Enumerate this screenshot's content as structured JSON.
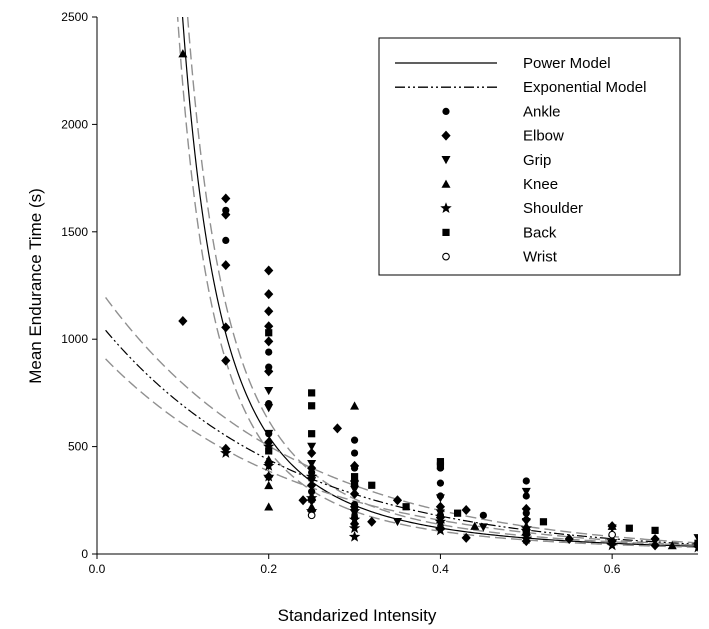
{
  "chart_data": {
    "type": "scatter",
    "title": "",
    "xlabel": "Standarized Intensity",
    "ylabel": "Mean Endurance Time (s)",
    "xlim": [
      0.0,
      0.7
    ],
    "ylim": [
      0,
      2500
    ],
    "xticks": [
      "0.0",
      "0.2",
      "0.4",
      "0.6"
    ],
    "xtick_values": [
      0.0,
      0.2,
      0.4,
      0.6
    ],
    "yticks": [
      "0",
      "500",
      "1000",
      "1500",
      "2000",
      "2500"
    ],
    "ytick_values": [
      0,
      500,
      1000,
      1500,
      2000,
      2500
    ],
    "grid": false,
    "legend_position": "top-right",
    "legend": [
      {
        "label": "Power Model",
        "kind": "solid-line"
      },
      {
        "label": "Exponential Model",
        "kind": "dash-dot-line"
      },
      {
        "label": "Ankle",
        "kind": "circle"
      },
      {
        "label": "Elbow",
        "kind": "diamond"
      },
      {
        "label": "Grip",
        "kind": "triangle-down"
      },
      {
        "label": "Knee",
        "kind": "triangle-up"
      },
      {
        "label": "Shoulder",
        "kind": "star"
      },
      {
        "label": "Back",
        "kind": "square"
      },
      {
        "label": "Wrist",
        "kind": "open-circle"
      }
    ],
    "models": [
      {
        "name": "Power Model",
        "form": "y = a * x^-b",
        "a": 16.4,
        "b": 2.18,
        "style": "solid",
        "color": "#000000"
      },
      {
        "name": "Power Model confidence band upper",
        "form": "y = a * x^-b",
        "a": 18.6,
        "b": 2.18,
        "style": "dashed",
        "color": "#909090"
      },
      {
        "name": "Power Model confidence band lower",
        "form": "y = a * x^-b",
        "a": 14.4,
        "b": 2.18,
        "style": "dashed",
        "color": "#909090"
      },
      {
        "name": "Exponential Model",
        "form": "y = a * exp(-b * x)",
        "a": 1090,
        "b": 4.55,
        "style": "dash-dot",
        "color": "#000000"
      },
      {
        "name": "Exponential Model confidence band upper",
        "form": "y = a * exp(-b * x)",
        "a": 1250,
        "b": 4.55,
        "style": "dashed",
        "color": "#909090"
      },
      {
        "name": "Exponential Model confidence band lower",
        "form": "y = a * exp(-b * x)",
        "a": 950,
        "b": 4.5,
        "style": "dashed",
        "color": "#909090"
      }
    ],
    "series": [
      {
        "name": "Ankle",
        "marker": "circle",
        "points": [
          [
            0.15,
            1600
          ],
          [
            0.15,
            1460
          ],
          [
            0.2,
            940
          ],
          [
            0.2,
            870
          ],
          [
            0.2,
            700
          ],
          [
            0.2,
            560
          ],
          [
            0.25,
            380
          ],
          [
            0.25,
            290
          ],
          [
            0.3,
            530
          ],
          [
            0.3,
            470
          ],
          [
            0.3,
            400
          ],
          [
            0.3,
            320
          ],
          [
            0.3,
            230
          ],
          [
            0.3,
            170
          ],
          [
            0.4,
            400
          ],
          [
            0.4,
            330
          ],
          [
            0.4,
            270
          ],
          [
            0.4,
            180
          ],
          [
            0.45,
            180
          ],
          [
            0.5,
            340
          ],
          [
            0.5,
            270
          ],
          [
            0.5,
            190
          ],
          [
            0.5,
            110
          ],
          [
            0.6,
            90
          ],
          [
            0.7,
            40
          ]
        ]
      },
      {
        "name": "Elbow",
        "marker": "diamond",
        "points": [
          [
            0.1,
            1085
          ],
          [
            0.15,
            1655
          ],
          [
            0.15,
            1580
          ],
          [
            0.15,
            1345
          ],
          [
            0.15,
            1055
          ],
          [
            0.15,
            900
          ],
          [
            0.15,
            490
          ],
          [
            0.2,
            1320
          ],
          [
            0.2,
            1210
          ],
          [
            0.2,
            1130
          ],
          [
            0.2,
            1060
          ],
          [
            0.2,
            990
          ],
          [
            0.2,
            850
          ],
          [
            0.2,
            520
          ],
          [
            0.2,
            360
          ],
          [
            0.24,
            250
          ],
          [
            0.25,
            470
          ],
          [
            0.25,
            400
          ],
          [
            0.25,
            320
          ],
          [
            0.25,
            250
          ],
          [
            0.25,
            200
          ],
          [
            0.28,
            585
          ],
          [
            0.3,
            410
          ],
          [
            0.3,
            340
          ],
          [
            0.3,
            280
          ],
          [
            0.3,
            220
          ],
          [
            0.3,
            140
          ],
          [
            0.32,
            150
          ],
          [
            0.35,
            250
          ],
          [
            0.4,
            220
          ],
          [
            0.4,
            170
          ],
          [
            0.4,
            120
          ],
          [
            0.43,
            205
          ],
          [
            0.43,
            75
          ],
          [
            0.5,
            210
          ],
          [
            0.5,
            160
          ],
          [
            0.5,
            90
          ],
          [
            0.5,
            60
          ],
          [
            0.55,
            70
          ],
          [
            0.6,
            130
          ],
          [
            0.6,
            60
          ],
          [
            0.65,
            70
          ],
          [
            0.65,
            40
          ],
          [
            0.7,
            50
          ]
        ]
      },
      {
        "name": "Grip",
        "marker": "triangle-down",
        "points": [
          [
            0.2,
            760
          ],
          [
            0.2,
            680
          ],
          [
            0.2,
            560
          ],
          [
            0.2,
            410
          ],
          [
            0.25,
            500
          ],
          [
            0.25,
            420
          ],
          [
            0.25,
            340
          ],
          [
            0.3,
            300
          ],
          [
            0.3,
            190
          ],
          [
            0.35,
            150
          ],
          [
            0.4,
            260
          ],
          [
            0.4,
            190
          ],
          [
            0.4,
            140
          ],
          [
            0.45,
            125
          ],
          [
            0.5,
            290
          ],
          [
            0.5,
            150
          ],
          [
            0.5,
            95
          ],
          [
            0.6,
            120
          ],
          [
            0.7,
            75
          ],
          [
            0.7,
            30
          ]
        ]
      },
      {
        "name": "Knee",
        "marker": "triangle-up",
        "points": [
          [
            0.1,
            2330
          ],
          [
            0.2,
            440
          ],
          [
            0.2,
            320
          ],
          [
            0.2,
            220
          ],
          [
            0.25,
            270
          ],
          [
            0.25,
            220
          ],
          [
            0.3,
            690
          ],
          [
            0.3,
            220
          ],
          [
            0.4,
            160
          ],
          [
            0.44,
            130
          ],
          [
            0.5,
            130
          ],
          [
            0.6,
            130
          ],
          [
            0.67,
            40
          ]
        ]
      },
      {
        "name": "Shoulder",
        "marker": "star",
        "points": [
          [
            0.15,
            470
          ],
          [
            0.2,
            500
          ],
          [
            0.2,
            410
          ],
          [
            0.2,
            360
          ],
          [
            0.25,
            360
          ],
          [
            0.25,
            260
          ],
          [
            0.25,
            200
          ],
          [
            0.3,
            200
          ],
          [
            0.3,
            160
          ],
          [
            0.3,
            120
          ],
          [
            0.3,
            80
          ],
          [
            0.4,
            150
          ],
          [
            0.4,
            110
          ],
          [
            0.5,
            120
          ],
          [
            0.5,
            70
          ],
          [
            0.6,
            60
          ],
          [
            0.6,
            40
          ],
          [
            0.7,
            30
          ]
        ]
      },
      {
        "name": "Back",
        "marker": "square",
        "points": [
          [
            0.2,
            1030
          ],
          [
            0.2,
            480
          ],
          [
            0.25,
            750
          ],
          [
            0.25,
            690
          ],
          [
            0.25,
            560
          ],
          [
            0.3,
            360
          ],
          [
            0.3,
            330
          ],
          [
            0.32,
            320
          ],
          [
            0.36,
            220
          ],
          [
            0.4,
            430
          ],
          [
            0.4,
            410
          ],
          [
            0.42,
            190
          ],
          [
            0.5,
            100
          ],
          [
            0.52,
            150
          ],
          [
            0.62,
            120
          ],
          [
            0.65,
            110
          ],
          [
            0.7,
            50
          ]
        ]
      },
      {
        "name": "Wrist",
        "marker": "open-circle",
        "points": [
          [
            0.25,
            180
          ],
          [
            0.6,
            90
          ]
        ]
      }
    ]
  }
}
